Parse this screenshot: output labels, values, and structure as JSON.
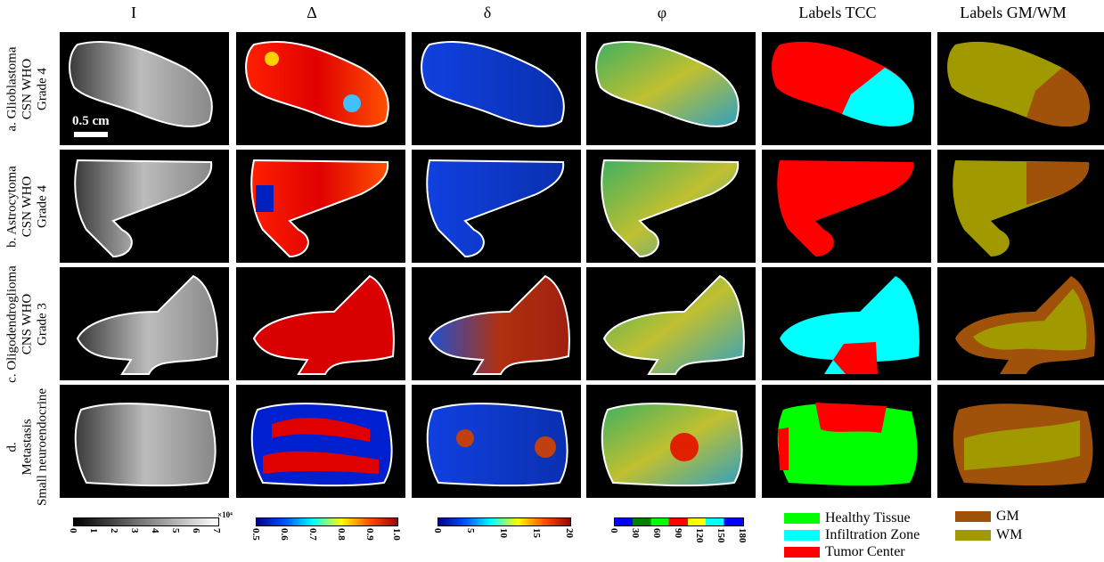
{
  "columns": [
    "I",
    "Δ",
    "δ",
    "φ",
    "Labels TCC",
    "Labels GM/WM"
  ],
  "rows": [
    {
      "line1": "a. Glioblastoma",
      "line2": "CSN WHO",
      "line3": "Grade 4"
    },
    {
      "line1": "b. Astrocytoma",
      "line2": "CSN WHO",
      "line3": "Grade 4"
    },
    {
      "line1": "c. Oligodendroglioma",
      "line2": "CNS WHO",
      "line3": "Grade 3"
    },
    {
      "line1": "d.",
      "line2": "Metastasis",
      "line3": "Small neuroendocrine"
    }
  ],
  "scale_bar": "0.5 cm",
  "colorbars": {
    "I": {
      "ticks": [
        "0",
        "1",
        "2",
        "3",
        "4",
        "5",
        "6",
        "7"
      ],
      "exponent": "×10⁴"
    },
    "Delta": {
      "ticks": [
        "0.5",
        "0.6",
        "0.7",
        "0.8",
        "0.9",
        "1.0"
      ]
    },
    "delta": {
      "ticks": [
        "0",
        "5",
        "10",
        "15",
        "20"
      ]
    },
    "phi": {
      "ticks": [
        "0",
        "30",
        "60",
        "90",
        "120",
        "150",
        "180"
      ]
    }
  },
  "legend_tcc": [
    {
      "label": "Healthy Tissue",
      "color": "#00ff00"
    },
    {
      "label": "Infiltration Zone",
      "color": "#00ffff"
    },
    {
      "label": "Tumor Center",
      "color": "#ff0000"
    }
  ],
  "legend_gmwm": [
    {
      "label": "GM",
      "color": "#a0520a"
    },
    {
      "label": "WM",
      "color": "#a09a00"
    }
  ]
}
